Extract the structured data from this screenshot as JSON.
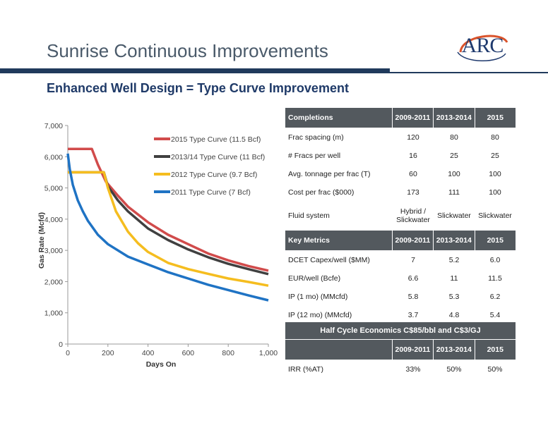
{
  "page": {
    "title": "Sunrise Continuous Improvements",
    "subtitle": "Enhanced Well Design = Type Curve Improvement",
    "logo_text": "ARC"
  },
  "colors": {
    "band": "#203a5c",
    "header": "#53595e",
    "series_2015": "#d14b4b",
    "series_2013": "#404040",
    "series_2012": "#f5bd1f",
    "series_2011": "#1f73c4"
  },
  "chart_data": {
    "type": "line",
    "title": "",
    "xlabel": "Days On",
    "ylabel": "Gas Rate (Mcfd)",
    "xlim": [
      0,
      1000
    ],
    "ylim": [
      0,
      7000
    ],
    "xticks": [
      "0",
      "200",
      "400",
      "600",
      "800",
      "1,000"
    ],
    "yticks": [
      "0",
      "1,000",
      "2,000",
      "3,000",
      "4,000",
      "5,000",
      "6,000",
      "7,000"
    ],
    "grid": false,
    "legend_position": "top-right",
    "series": [
      {
        "name": "2015 Type Curve (11.5 Bcf)",
        "color": "#d14b4b",
        "points": [
          [
            0,
            6250
          ],
          [
            120,
            6250
          ],
          [
            150,
            5750
          ],
          [
            190,
            5200
          ],
          [
            250,
            4750
          ],
          [
            300,
            4400
          ],
          [
            400,
            3900
          ],
          [
            500,
            3500
          ],
          [
            600,
            3200
          ],
          [
            700,
            2900
          ],
          [
            800,
            2680
          ],
          [
            900,
            2500
          ],
          [
            1000,
            2350
          ]
        ]
      },
      {
        "name": "2013/14 Type Curve (11 Bcf)",
        "color": "#404040",
        "points": [
          [
            0,
            5500
          ],
          [
            180,
            5500
          ],
          [
            200,
            5050
          ],
          [
            250,
            4600
          ],
          [
            300,
            4250
          ],
          [
            400,
            3700
          ],
          [
            500,
            3330
          ],
          [
            600,
            3030
          ],
          [
            700,
            2780
          ],
          [
            800,
            2570
          ],
          [
            900,
            2400
          ],
          [
            1000,
            2240
          ]
        ]
      },
      {
        "name": "2012 Type Curve (9.7 Bcf)",
        "color": "#f5bd1f",
        "points": [
          [
            0,
            5500
          ],
          [
            180,
            5500
          ],
          [
            200,
            5000
          ],
          [
            240,
            4250
          ],
          [
            300,
            3600
          ],
          [
            350,
            3230
          ],
          [
            400,
            2950
          ],
          [
            500,
            2600
          ],
          [
            600,
            2400
          ],
          [
            700,
            2250
          ],
          [
            800,
            2100
          ],
          [
            900,
            1990
          ],
          [
            1000,
            1870
          ]
        ]
      },
      {
        "name": "2011 Type Curve (7 Bcf)",
        "color": "#1f73c4",
        "points": [
          [
            0,
            6100
          ],
          [
            10,
            5600
          ],
          [
            25,
            5100
          ],
          [
            50,
            4600
          ],
          [
            75,
            4250
          ],
          [
            100,
            3950
          ],
          [
            150,
            3500
          ],
          [
            200,
            3200
          ],
          [
            300,
            2800
          ],
          [
            400,
            2550
          ],
          [
            500,
            2300
          ],
          [
            600,
            2100
          ],
          [
            700,
            1900
          ],
          [
            800,
            1730
          ],
          [
            900,
            1560
          ],
          [
            1000,
            1400
          ]
        ]
      }
    ]
  },
  "completions": {
    "headers": [
      "Completions",
      "2009-2011",
      "2013-2014",
      "2015"
    ],
    "rows": [
      [
        "Frac spacing (m)",
        "120",
        "80",
        "80"
      ],
      [
        "# Fracs per well",
        "16",
        "25",
        "25"
      ],
      [
        "Avg. tonnage per frac (T)",
        "60",
        "100",
        "100"
      ],
      [
        "Cost per frac ($000)",
        "173",
        "111",
        "100"
      ]
    ],
    "fluid_row": {
      "label": "Fluid system",
      "v1_line1": "Hybrid /",
      "v1_line2": "Slickwater",
      "v2": "Slickwater",
      "v3": "Slickwater"
    }
  },
  "key_metrics": {
    "headers": [
      "Key Metrics",
      "2009-2011",
      "2013-2014",
      "2015"
    ],
    "rows": [
      [
        "DCET Capex/well ($MM)",
        "7",
        "5.2",
        "6.0"
      ],
      [
        "EUR/well (Bcfe)",
        "6.6",
        "11",
        "11.5"
      ],
      [
        "IP (1 mo) (MMcfd)",
        "5.8",
        "5.3",
        "6.2"
      ],
      [
        "IP (12 mo) (MMcfd)",
        "3.7",
        "4.8",
        "5.4"
      ]
    ]
  },
  "half_cycle": {
    "title": "Half Cycle Economics C$85/bbl and C$3/GJ",
    "headers": [
      "",
      "2009-2011",
      "2013-2014",
      "2015"
    ],
    "rows": [
      [
        "IRR (%AT)",
        "33%",
        "50%",
        "50%"
      ]
    ]
  }
}
